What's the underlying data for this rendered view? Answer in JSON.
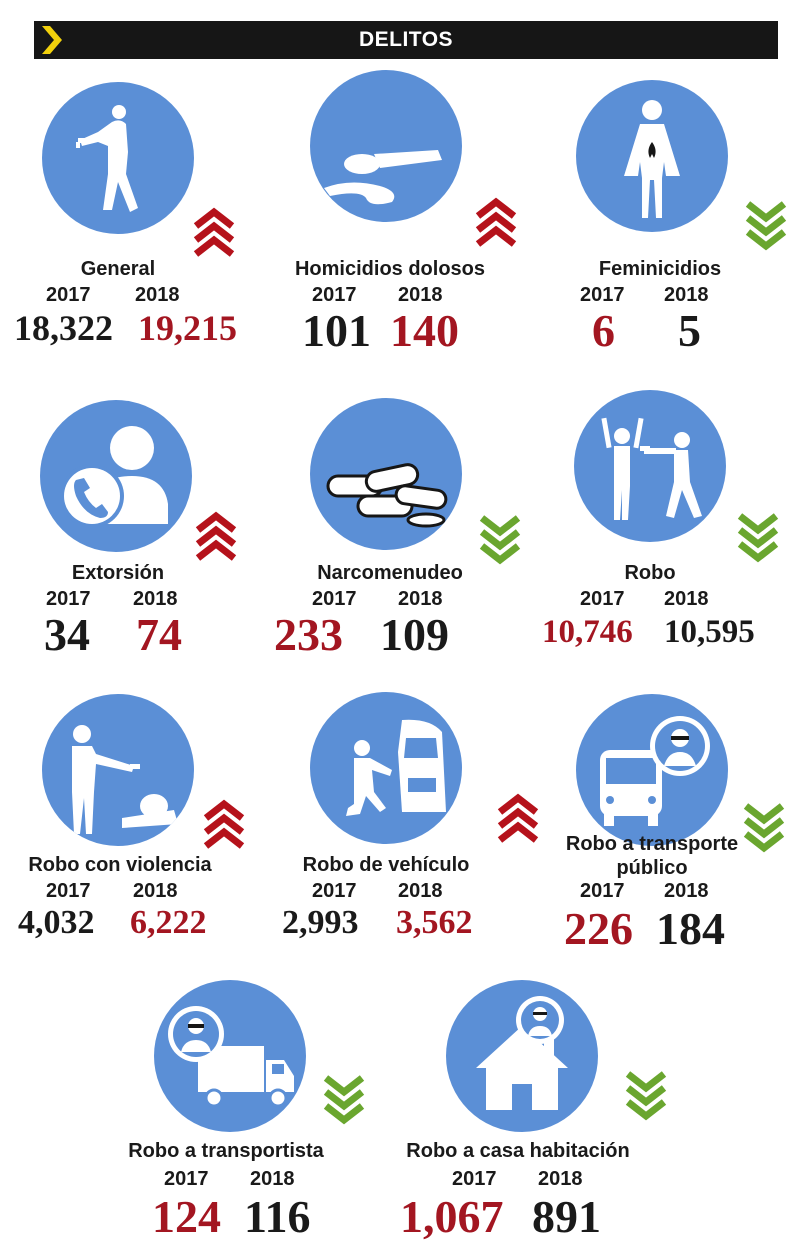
{
  "header": {
    "title": "DELITOS",
    "chevron_color": "#f2d10c"
  },
  "colors": {
    "circle": "#5b8fd6",
    "up": "#b5121b",
    "down": "#6aa62f",
    "increase_text": "#a31621",
    "text": "#1a1a1a"
  },
  "items": [
    {
      "label": "General",
      "y2017_label": "2017",
      "y2018_label": "2018",
      "v2017": "18,322",
      "v2018": "19,215",
      "trend": "up",
      "icon": "gunman-walking-icon"
    },
    {
      "label": "Homicidios dolosos",
      "y2017_label": "2017",
      "y2018_label": "2018",
      "v2017": "101",
      "v2018": "140",
      "trend": "up",
      "icon": "body-lying-icon"
    },
    {
      "label": "Feminicidios",
      "y2017_label": "2017",
      "y2018_label": "2018",
      "v2017": "6",
      "v2018": "5",
      "trend": "down",
      "icon": "woman-mourning-icon"
    },
    {
      "label": "Extorsión",
      "y2017_label": "2017",
      "y2018_label": "2018",
      "v2017": "34",
      "v2018": "74",
      "trend": "up",
      "icon": "phone-call-icon"
    },
    {
      "label": "Narcomenudeo",
      "y2017_label": "2017",
      "y2018_label": "2018",
      "v2017": "233",
      "v2018": "109",
      "trend": "down",
      "icon": "pills-icon"
    },
    {
      "label": "Robo",
      "y2017_label": "2017",
      "y2018_label": "2018",
      "v2017": "10,746",
      "v2018": "10,595",
      "trend": "down",
      "icon": "robbery-icon"
    },
    {
      "label": "Robo con violencia",
      "y2017_label": "2017",
      "y2018_label": "2018",
      "v2017": "4,032",
      "v2018": "6,222",
      "trend": "up",
      "icon": "violent-robbery-icon"
    },
    {
      "label": "Robo de vehículo",
      "y2017_label": "2017",
      "y2018_label": "2018",
      "v2017": "2,993",
      "v2018": "3,562",
      "trend": "up",
      "icon": "car-theft-icon"
    },
    {
      "label": "Robo a transporte público",
      "y2017_label": "2017",
      "y2018_label": "2018",
      "v2017": "226",
      "v2018": "184",
      "trend": "down",
      "icon": "bus-thief-icon"
    },
    {
      "label": "Robo a transportista",
      "y2017_label": "2017",
      "y2018_label": "2018",
      "v2017": "124",
      "v2018": "116",
      "trend": "down",
      "icon": "truck-thief-icon"
    },
    {
      "label": "Robo a casa habitación",
      "y2017_label": "2017",
      "y2018_label": "2018",
      "v2017": "1,067",
      "v2018": "891",
      "trend": "down",
      "icon": "house-thief-icon"
    }
  ]
}
